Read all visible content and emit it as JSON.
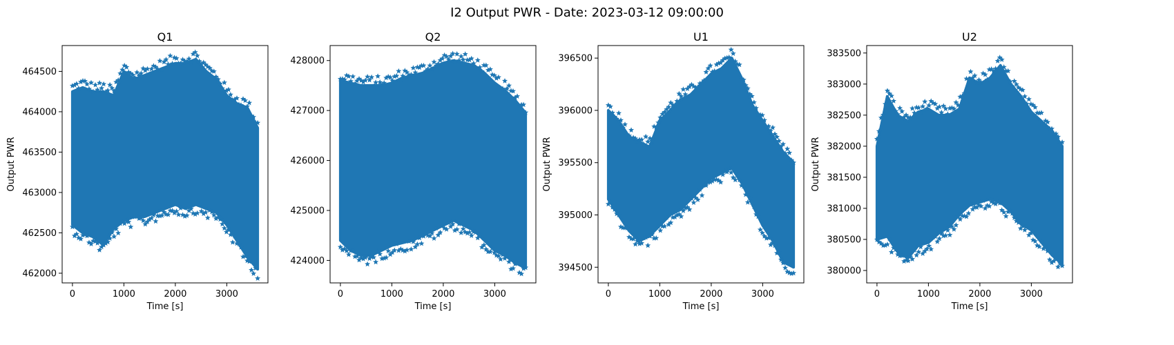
{
  "figure": {
    "title": "I2 Output PWR - Date: 2023-03-12 09:00:00"
  },
  "chart_data": [
    {
      "type": "scatter",
      "title": "Q1",
      "xlabel": "Time [s]",
      "ylabel": "Output PWR",
      "xlim": [
        -200,
        3800
      ],
      "ylim": [
        461880,
        464820
      ],
      "xticks": [
        0,
        1000,
        2000,
        3000
      ],
      "yticks": [
        462000,
        462500,
        463000,
        463500,
        464000,
        464500
      ],
      "marker_color": "#1f77b4",
      "marker": "star",
      "series": [
        {
          "x": [
            0,
            200,
            400,
            600,
            800,
            1000,
            1200,
            1400,
            1600,
            1800,
            2000,
            2200,
            2400,
            2600,
            2800,
            3000,
            3200,
            3400,
            3600
          ],
          "low": [
            462600,
            462500,
            462450,
            462350,
            462550,
            462650,
            462700,
            462700,
            462750,
            462800,
            462850,
            462800,
            462850,
            462800,
            462750,
            462600,
            462400,
            462200,
            462050
          ],
          "high": [
            464250,
            464300,
            464250,
            464250,
            464200,
            464500,
            464400,
            464450,
            464500,
            464550,
            464600,
            464600,
            464650,
            464500,
            464400,
            464200,
            464100,
            464050,
            463800
          ]
        }
      ]
    },
    {
      "type": "scatter",
      "title": "Q2",
      "xlabel": "Time [s]",
      "ylabel": "",
      "xlim": [
        -200,
        3800
      ],
      "ylim": [
        423550,
        428300
      ],
      "xticks": [
        0,
        1000,
        2000,
        3000
      ],
      "yticks": [
        424000,
        425000,
        426000,
        427000,
        428000
      ],
      "marker_color": "#1f77b4",
      "marker": "star",
      "series": [
        {
          "x": [
            0,
            200,
            400,
            600,
            800,
            1000,
            1200,
            1400,
            1600,
            1800,
            2000,
            2200,
            2400,
            2600,
            2800,
            3000,
            3200,
            3400,
            3600
          ],
          "low": [
            424400,
            424200,
            424100,
            424100,
            424200,
            424300,
            424350,
            424400,
            424500,
            424600,
            424700,
            424800,
            424700,
            424600,
            424400,
            424200,
            424100,
            423950,
            423850
          ],
          "high": [
            427600,
            427550,
            427500,
            427500,
            427500,
            427550,
            427650,
            427700,
            427750,
            427850,
            427950,
            428000,
            427950,
            427900,
            427750,
            427550,
            427400,
            427200,
            426950
          ]
        }
      ]
    },
    {
      "type": "scatter",
      "title": "U1",
      "xlabel": "Time [s]",
      "ylabel": "Output PWR",
      "xlim": [
        -200,
        3800
      ],
      "ylim": [
        394350,
        396620
      ],
      "xticks": [
        0,
        1000,
        2000,
        3000
      ],
      "yticks": [
        394500,
        395000,
        395500,
        396000,
        396500
      ],
      "marker_color": "#1f77b4",
      "marker": "star",
      "series": [
        {
          "x": [
            0,
            200,
            400,
            600,
            800,
            1000,
            1200,
            1400,
            1600,
            1800,
            2000,
            2200,
            2400,
            2600,
            2800,
            3000,
            3200,
            3400,
            3600
          ],
          "low": [
            395150,
            395000,
            394850,
            394750,
            394800,
            394900,
            395000,
            395050,
            395150,
            395250,
            395350,
            395400,
            395450,
            395300,
            395100,
            394900,
            394750,
            394550,
            394500
          ],
          "high": [
            396000,
            395900,
            395750,
            395700,
            395650,
            395900,
            396000,
            396100,
            396150,
            396250,
            396350,
            396400,
            396500,
            396300,
            396050,
            395900,
            395750,
            395600,
            395500
          ]
        }
      ]
    },
    {
      "type": "scatter",
      "title": "U2",
      "xlabel": "Time [s]",
      "ylabel": "Output PWR",
      "xlim": [
        -200,
        3800
      ],
      "ylim": [
        379800,
        383620
      ],
      "xticks": [
        0,
        1000,
        2000,
        3000
      ],
      "yticks": [
        380000,
        380500,
        381000,
        381500,
        382000,
        382500,
        383000,
        383500
      ],
      "marker_color": "#1f77b4",
      "marker": "star",
      "series": [
        {
          "x": [
            0,
            200,
            400,
            600,
            800,
            1000,
            1200,
            1400,
            1600,
            1800,
            2000,
            2200,
            2400,
            2600,
            2800,
            3000,
            3200,
            3400,
            3600
          ],
          "low": [
            380500,
            380550,
            380300,
            380200,
            380400,
            380450,
            380600,
            380700,
            380900,
            381050,
            381100,
            381150,
            381100,
            380950,
            380750,
            380650,
            380450,
            380250,
            380100
          ],
          "high": [
            382000,
            382800,
            382500,
            382400,
            382550,
            382600,
            382500,
            382500,
            382600,
            383100,
            383000,
            383100,
            383300,
            383000,
            382800,
            382550,
            382400,
            382250,
            382000
          ]
        }
      ]
    }
  ]
}
